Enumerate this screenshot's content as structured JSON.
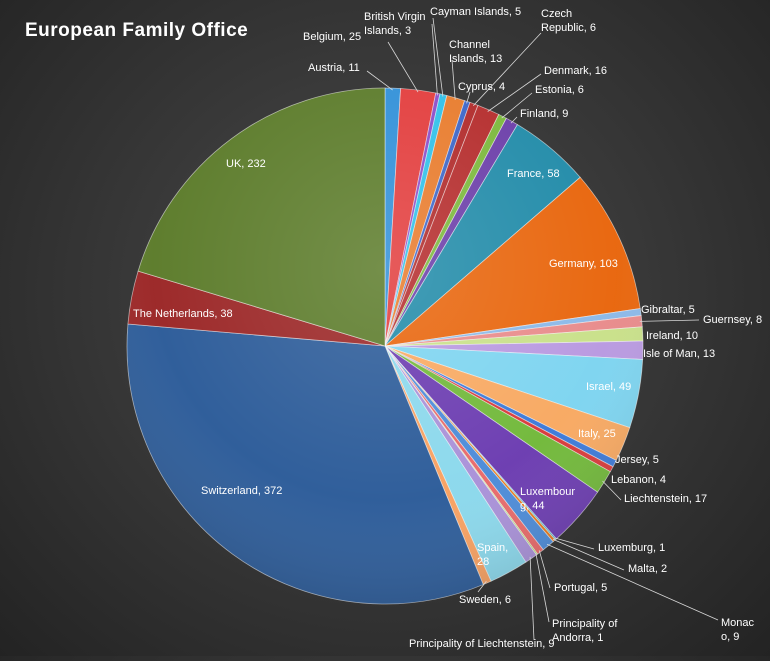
{
  "chart_data": {
    "type": "pie",
    "title": "European  Family  Office",
    "start_angle_deg": 0,
    "direction": "clockwise",
    "slices": [
      {
        "label": "Austria",
        "value": 11,
        "text": "Austria, 11",
        "color": "#2f8fd8"
      },
      {
        "label": "Belgium",
        "value": 25,
        "text": "Belgium, 25",
        "color": "#e23b3b"
      },
      {
        "label": "British Virgin Islands",
        "value": 3,
        "text": "British Virgin Islands, 3",
        "color": "#8a4bc8"
      },
      {
        "label": "Cayman Islands",
        "value": 5,
        "text": "Cayman Islands, 5",
        "color": "#2fc0e8"
      },
      {
        "label": "Channel Islands",
        "value": 13,
        "text": "Channel Islands, 13",
        "color": "#e87a2a"
      },
      {
        "label": "Cyprus",
        "value": 4,
        "text": "Cyprus, 4",
        "color": "#3a64c8"
      },
      {
        "label": "Czech Republic",
        "value": 6,
        "text": "Czech Republic, 6",
        "color": "#b02828"
      },
      {
        "label": "Denmark",
        "value": 16,
        "text": "Denmark, 16",
        "color": "#b42a2a"
      },
      {
        "label": "Estonia",
        "value": 6,
        "text": "Estonia, 6",
        "color": "#7ab83a"
      },
      {
        "label": "Finland",
        "value": 9,
        "text": "Finland, 9",
        "color": "#6a3ca8"
      },
      {
        "label": "France",
        "value": 58,
        "text": "France, 58",
        "color": "#1f8aa8"
      },
      {
        "label": "Germany",
        "value": 103,
        "text": "Germany, 103",
        "color": "#e8640a"
      },
      {
        "label": "Gibraltar",
        "value": 5,
        "text": "Gibraltar, 5",
        "color": "#8ab8e8"
      },
      {
        "label": "Guernsey",
        "value": 8,
        "text": "Guernsey, 8",
        "color": "#e88a8a"
      },
      {
        "label": "Ireland",
        "value": 10,
        "text": "Ireland, 10",
        "color": "#c8e088"
      },
      {
        "label": "Isle of Man",
        "value": 13,
        "text": "Isle of Man, 13",
        "color": "#b898e0"
      },
      {
        "label": "Israel",
        "value": 49,
        "text": "Israel, 49",
        "color": "#7cd4f0"
      },
      {
        "label": "Italy",
        "value": 25,
        "text": "Italy, 25",
        "color": "#f8a860"
      },
      {
        "label": "Jersey",
        "value": 5,
        "text": "Jersey, 5",
        "color": "#3a78d8"
      },
      {
        "label": "Lebanon",
        "value": 4,
        "text": "Lebanon, 4",
        "color": "#d83838"
      },
      {
        "label": "Liechtenstein",
        "value": 17,
        "text": "Liechtenstein, 17",
        "color": "#70b838"
      },
      {
        "label": "Luxembourg",
        "value": 44,
        "text": "Luxembourg, 44",
        "color": "#6a3ab0"
      },
      {
        "label": "Luxemburg",
        "value": 1,
        "text": "Luxemburg, 1",
        "color": "#30b0c8"
      },
      {
        "label": "Malta",
        "value": 2,
        "text": "Malta, 2",
        "color": "#e87818"
      },
      {
        "label": "Monaco",
        "value": 9,
        "text": "Monaco, 9",
        "color": "#4a8ad8"
      },
      {
        "label": "Portugal",
        "value": 5,
        "text": "Portugal, 5",
        "color": "#e86868"
      },
      {
        "label": "Principality of Andorra",
        "value": 1,
        "text": "Principality of Andorra, 1",
        "color": "#a8d868"
      },
      {
        "label": "Principality of Liechtenstein",
        "value": 9,
        "text": "Principality of Liechtenstein, 9",
        "color": "#a890d8"
      },
      {
        "label": "Spain",
        "value": 28,
        "text": "Spain, 28",
        "color": "#8ad8ec"
      },
      {
        "label": "Sweden",
        "value": 6,
        "text": "Sweden, 6",
        "color": "#f8a060"
      },
      {
        "label": "Switzerland",
        "value": 372,
        "text": "Switzerland, 372",
        "color": "#2a5a98"
      },
      {
        "label": "The Netherlands",
        "value": 38,
        "text": "The Netherlands, 38",
        "color": "#9a2424"
      },
      {
        "label": "UK",
        "value": 232,
        "text": "UK, 232",
        "color": "#5a7a28"
      }
    ]
  }
}
